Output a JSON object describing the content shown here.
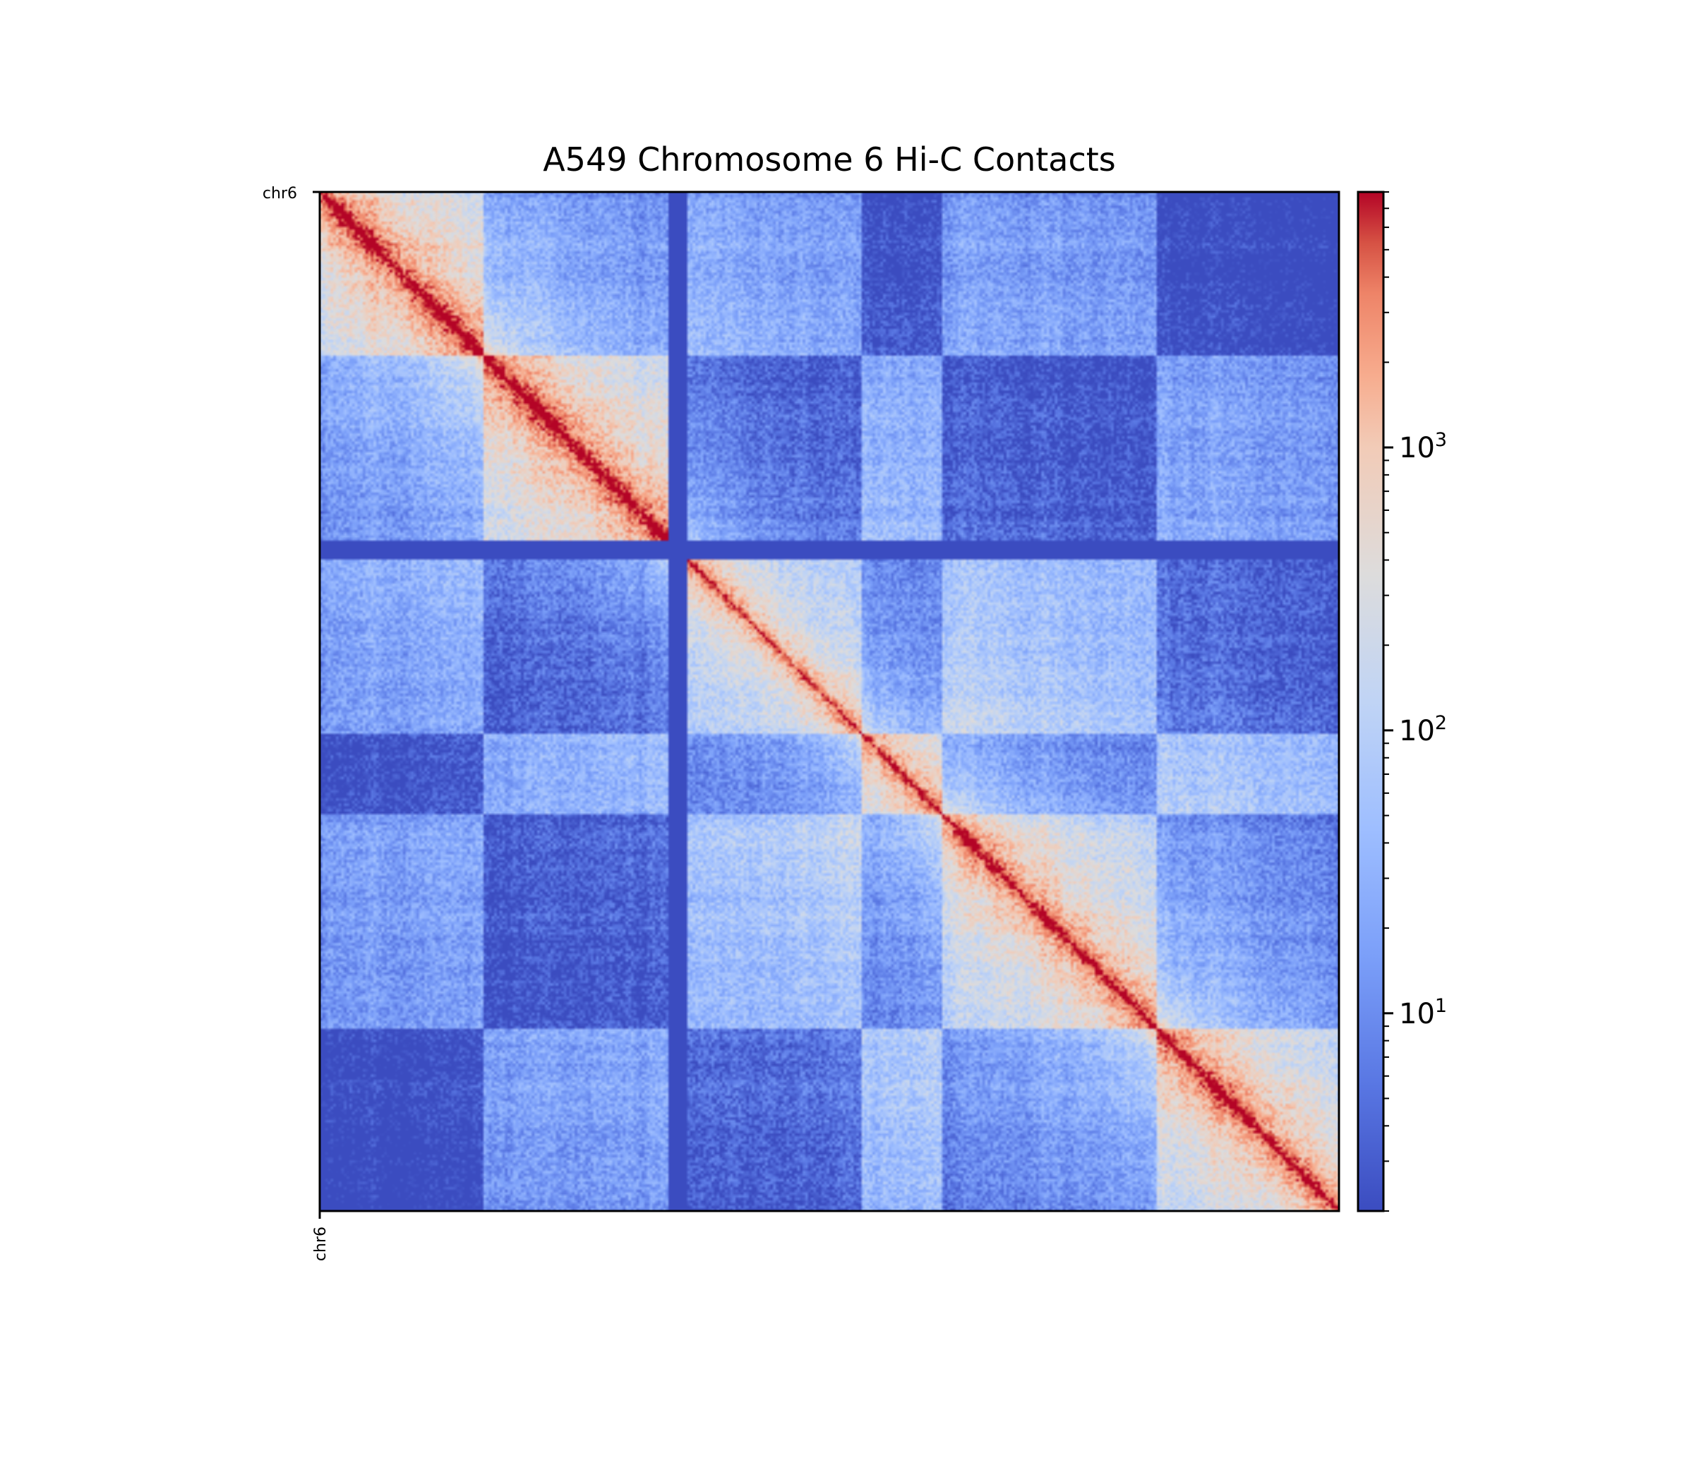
{
  "chart_data": {
    "type": "heatmap",
    "title": "A549 Chromosome 6 Hi-C Contacts",
    "chromosome": "chr6",
    "x_tick_labels": [
      "chr6"
    ],
    "y_tick_labels": [
      "chr6"
    ],
    "colormap": "coolwarm",
    "color_scale": "log",
    "colorbar": {
      "range": [
        2,
        8000
      ],
      "major_ticks": [
        {
          "value": 10,
          "label": "10^1",
          "base": "10",
          "exp": "1"
        },
        {
          "value": 100,
          "label": "10^2",
          "base": "10",
          "exp": "2"
        },
        {
          "value": 1000,
          "label": "10^3",
          "base": "10",
          "exp": "3"
        }
      ]
    },
    "matrix_structure": {
      "diagonal_max_contacts": 5000,
      "background_contacts": 2,
      "centromere_gap_fraction": 0.35,
      "compartment_block_boundaries": [
        0.16,
        0.35,
        0.53,
        0.61,
        0.82
      ]
    }
  },
  "colors": {
    "low": "#3b4cc0",
    "mid": "#dddddd",
    "high": "#b40426",
    "axis": "#000000"
  }
}
